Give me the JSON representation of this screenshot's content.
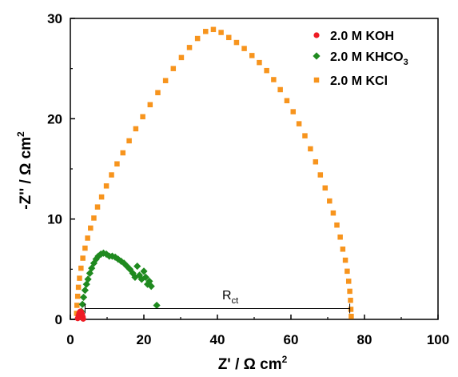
{
  "chart_data": {
    "type": "scatter",
    "title": "",
    "xlabel": "Z' / Ω cm",
    "xlabel_sup": "2",
    "ylabel": "-Z'' / Ω cm",
    "ylabel_sup": "2",
    "xlim": [
      0,
      100
    ],
    "ylim": [
      0,
      30
    ],
    "xticks": [
      "0",
      "20",
      "40",
      "60",
      "80",
      "100"
    ],
    "yticks": [
      "0",
      "10",
      "20",
      "30"
    ],
    "grid": false,
    "legend_position": "top-right",
    "series": [
      {
        "name": "2.0 M KOH",
        "name_sub": "",
        "name_tail": "",
        "marker": "circle",
        "color": "#ee1c24",
        "x": [
          2.0,
          2.2,
          2.4,
          2.6,
          2.8,
          3.0,
          3.2,
          3.4,
          3.5
        ],
        "y": [
          0.1,
          0.35,
          0.6,
          0.75,
          0.8,
          0.7,
          0.5,
          0.25,
          0.05
        ]
      },
      {
        "name": "2.0 M KHCO",
        "name_sub": "3",
        "name_tail": "",
        "marker": "diamond",
        "color": "#1f8a1f",
        "x": [
          3.0,
          3.3,
          3.6,
          4.0,
          4.4,
          4.8,
          5.3,
          5.8,
          6.4,
          7.0,
          7.6,
          8.3,
          9.0,
          9.8,
          10.6,
          11.4,
          12.2,
          13.0,
          13.8,
          14.6,
          15.4,
          16.2,
          17.0,
          17.6,
          18.2,
          18.8,
          19.4,
          20.0,
          20.5,
          21.0,
          21.5,
          22.0,
          23.5
        ],
        "y": [
          0.8,
          1.5,
          2.2,
          2.9,
          3.5,
          4.0,
          4.6,
          5.1,
          5.6,
          6.0,
          6.3,
          6.5,
          6.6,
          6.5,
          6.3,
          6.3,
          6.2,
          6.0,
          5.8,
          5.6,
          5.3,
          5.0,
          4.6,
          4.2,
          5.3,
          4.4,
          4.0,
          4.8,
          4.2,
          3.5,
          3.8,
          3.3,
          1.4
        ]
      },
      {
        "name": "2.0 M KCl",
        "name_sub": "",
        "name_tail": "",
        "marker": "square",
        "color": "#f7941d",
        "x": [
          1.7,
          1.8,
          2.0,
          2.2,
          2.5,
          2.9,
          3.4,
          4.0,
          4.7,
          5.5,
          6.4,
          7.4,
          8.5,
          9.8,
          11.2,
          12.7,
          14.3,
          16.0,
          17.8,
          19.7,
          21.7,
          23.8,
          25.9,
          28.0,
          30.2,
          32.4,
          34.6,
          36.8,
          38.9,
          41.0,
          43.1,
          45.2,
          47.3,
          49.4,
          51.4,
          53.4,
          55.3,
          57.1,
          58.9,
          60.6,
          62.2,
          63.8,
          65.3,
          66.7,
          68.0,
          69.3,
          70.5,
          71.5,
          72.5,
          73.4,
          74.1,
          74.8,
          75.3,
          75.7,
          76.0,
          76.2,
          76.3,
          76.4
        ],
        "y": [
          0.6,
          1.4,
          2.3,
          3.2,
          4.1,
          5.1,
          6.1,
          7.1,
          8.1,
          9.1,
          10.1,
          11.2,
          12.2,
          13.3,
          14.4,
          15.5,
          16.6,
          17.8,
          19.0,
          20.2,
          21.4,
          22.6,
          23.8,
          25.0,
          26.1,
          27.1,
          28.0,
          28.7,
          28.9,
          28.6,
          28.1,
          27.6,
          27.0,
          26.3,
          25.6,
          24.8,
          23.9,
          22.9,
          21.8,
          20.7,
          19.5,
          18.3,
          17.0,
          15.7,
          14.4,
          13.1,
          11.8,
          10.6,
          9.4,
          8.2,
          7.0,
          5.9,
          4.8,
          3.8,
          2.8,
          1.9,
          1.0,
          0.3
        ]
      }
    ],
    "annotation": {
      "label": "R",
      "label_sub": "ct",
      "x_start": 4.0,
      "x_end": 76.0,
      "y": 1.0
    }
  }
}
